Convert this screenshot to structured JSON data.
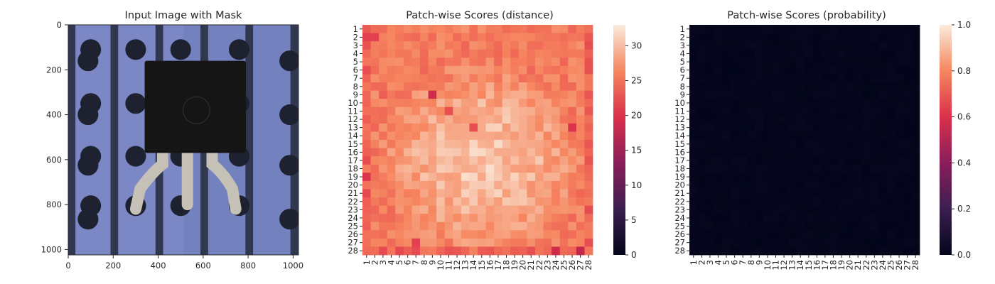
{
  "chart_data": [
    {
      "type": "image",
      "title": "Input Image with Mask",
      "x_ticks": [
        "0",
        "200",
        "400",
        "600",
        "800",
        "1000"
      ],
      "y_ticks": [
        "0",
        "200",
        "400",
        "600",
        "800",
        "1000"
      ],
      "xlim": [
        0,
        1024
      ],
      "ylim": [
        1024,
        0
      ],
      "content": "photograph of a black TO-92 transistor (three bent leads) on a blue perforated board with dark vertical stripes and round holes",
      "colors": {
        "board": "#7481bf",
        "board_light": "#8996d2",
        "stripe": "#30374f",
        "hole": "#1d2130",
        "body": "#151515",
        "lead": "#c5c1b6"
      }
    },
    {
      "type": "heatmap",
      "title": "Patch-wise Scores (distance)",
      "x_tick_labels": [
        "1",
        "2",
        "3",
        "4",
        "5",
        "6",
        "7",
        "8",
        "9",
        "10",
        "11",
        "12",
        "13",
        "14",
        "15",
        "16",
        "17",
        "18",
        "19",
        "20",
        "21",
        "22",
        "23",
        "24",
        "25",
        "26",
        "27",
        "28"
      ],
      "y_tick_labels": [
        "1",
        "2",
        "3",
        "4",
        "5",
        "6",
        "7",
        "8",
        "9",
        "10",
        "11",
        "12",
        "13",
        "14",
        "15",
        "16",
        "17",
        "18",
        "19",
        "20",
        "21",
        "22",
        "23",
        "24",
        "25",
        "26",
        "27",
        "28"
      ],
      "grid_size": [
        28,
        28
      ],
      "colormap": "rocket",
      "vmin": 0,
      "vmax": 33,
      "colorbar_ticks": [
        "0",
        "5",
        "10",
        "15",
        "20",
        "25",
        "30"
      ],
      "values_approx": "mostly 25-31 (light salmon), center block brighter ~30-32, scattered low cells ~19-21 (e.g. row 9 col 9, row 19 col 1, row 2 cols 1-2, row 28 cols 24 and 27)"
    },
    {
      "type": "heatmap",
      "title": "Patch-wise Scores (probability)",
      "x_tick_labels": [
        "1",
        "2",
        "3",
        "4",
        "5",
        "6",
        "7",
        "8",
        "9",
        "10",
        "11",
        "12",
        "13",
        "14",
        "15",
        "16",
        "17",
        "18",
        "19",
        "20",
        "21",
        "22",
        "23",
        "24",
        "25",
        "26",
        "27",
        "28"
      ],
      "y_tick_labels": [
        "1",
        "2",
        "3",
        "4",
        "5",
        "6",
        "7",
        "8",
        "9",
        "10",
        "11",
        "12",
        "13",
        "14",
        "15",
        "16",
        "17",
        "18",
        "19",
        "20",
        "21",
        "22",
        "23",
        "24",
        "25",
        "26",
        "27",
        "28"
      ],
      "grid_size": [
        28,
        28
      ],
      "colormap": "rocket",
      "vmin": 0.0,
      "vmax": 1.0,
      "colorbar_ticks": [
        "0.0",
        "0.2",
        "0.4",
        "0.6",
        "0.8",
        "1.0"
      ],
      "values_approx": "all cells approximately 0.0 (near-black)"
    }
  ]
}
